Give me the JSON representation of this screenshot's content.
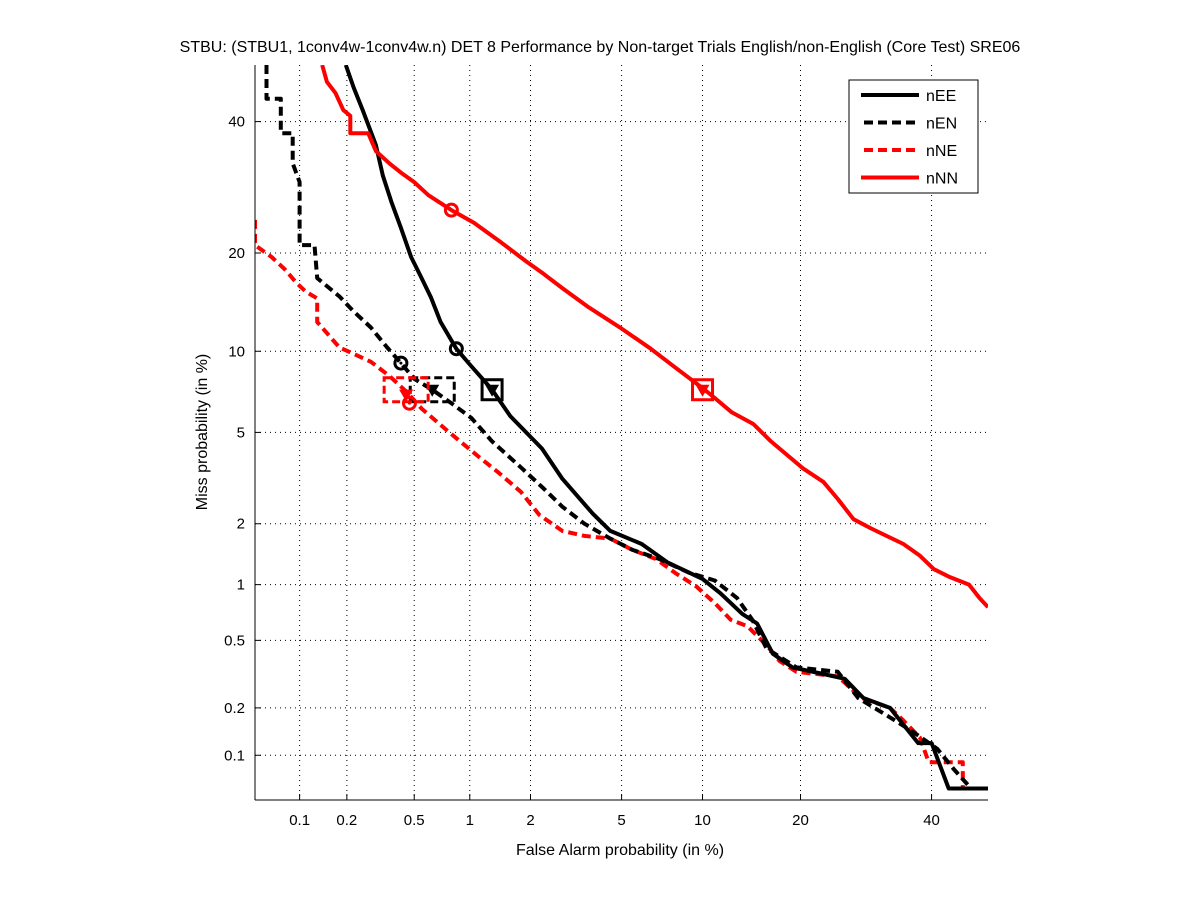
{
  "chart_data": {
    "type": "line",
    "scale": "normal-deviate (DET)",
    "title": "STBU: (STBU1, 1conv4w-1conv4w.n) DET 8 Performance by Non-target Trials English/non-English (Core Test) SRE06",
    "xlabel": "False Alarm probability (in %)",
    "ylabel": "Miss probability (in %)",
    "xlim": [
      0.05,
      50
    ],
    "ylim": [
      0.05,
      50
    ],
    "xticks": [
      0.1,
      0.2,
      0.5,
      1,
      2,
      5,
      10,
      20,
      40
    ],
    "xtick_labels": [
      "0.1",
      "0.2",
      "0.5",
      "1",
      "2",
      "5",
      "10",
      "20",
      "40"
    ],
    "yticks": [
      0.1,
      0.2,
      0.5,
      1,
      2,
      5,
      10,
      20,
      40
    ],
    "ytick_labels": [
      "0.1",
      "0.2",
      "0.5",
      "1",
      "2",
      "5",
      "10",
      "20",
      "40"
    ],
    "grid": true,
    "legend_position": "top-right",
    "series": [
      {
        "name": "nEE",
        "color": "#000000",
        "style": "solid",
        "points": [
          [
            0.197,
            50
          ],
          [
            0.22,
            46
          ],
          [
            0.25,
            42
          ],
          [
            0.3,
            36
          ],
          [
            0.33,
            31
          ],
          [
            0.37,
            27
          ],
          [
            0.42,
            23.3
          ],
          [
            0.48,
            19.5
          ],
          [
            0.55,
            17
          ],
          [
            0.62,
            14.9
          ],
          [
            0.7,
            12.5
          ],
          [
            0.85,
            10.2
          ],
          [
            1.0,
            9.0
          ],
          [
            1.3,
            7.3
          ],
          [
            1.6,
            5.8
          ],
          [
            2.26,
            4.3
          ],
          [
            2.8,
            3.2
          ],
          [
            3.8,
            2.23
          ],
          [
            4.5,
            1.85
          ],
          [
            6.0,
            1.6
          ],
          [
            7.5,
            1.3
          ],
          [
            10,
            1.07
          ],
          [
            11.5,
            0.9
          ],
          [
            13.5,
            0.7
          ],
          [
            15,
            0.62
          ],
          [
            16.7,
            0.42
          ],
          [
            19,
            0.35
          ],
          [
            23,
            0.32
          ],
          [
            26,
            0.3
          ],
          [
            28.8,
            0.23
          ],
          [
            33,
            0.2
          ],
          [
            37.7,
            0.12
          ],
          [
            40,
            0.12
          ],
          [
            43,
            0.06
          ],
          [
            50,
            0.06
          ]
        ]
      },
      {
        "name": "nEN",
        "color": "#000000",
        "style": "dashed",
        "points": [
          [
            0.06,
            50
          ],
          [
            0.06,
            44
          ],
          [
            0.075,
            44
          ],
          [
            0.075,
            38
          ],
          [
            0.09,
            38
          ],
          [
            0.09,
            33
          ],
          [
            0.1,
            30
          ],
          [
            0.1,
            21
          ],
          [
            0.125,
            21
          ],
          [
            0.13,
            17
          ],
          [
            0.18,
            15
          ],
          [
            0.22,
            13.5
          ],
          [
            0.28,
            12
          ],
          [
            0.35,
            10.3
          ],
          [
            0.42,
            9.1
          ],
          [
            0.5,
            8.0
          ],
          [
            0.63,
            7.3
          ],
          [
            0.8,
            6.5
          ],
          [
            1.02,
            5.7
          ],
          [
            1.3,
            4.6
          ],
          [
            1.82,
            3.55
          ],
          [
            2.3,
            2.9
          ],
          [
            2.8,
            2.4
          ],
          [
            3.5,
            2.0
          ],
          [
            4.5,
            1.7
          ],
          [
            5.5,
            1.5
          ],
          [
            7,
            1.35
          ],
          [
            9,
            1.15
          ],
          [
            11,
            1.05
          ],
          [
            13,
            0.85
          ],
          [
            14.5,
            0.65
          ],
          [
            16,
            0.45
          ],
          [
            19.5,
            0.35
          ],
          [
            25,
            0.33
          ],
          [
            28,
            0.23
          ],
          [
            33.5,
            0.17
          ],
          [
            37,
            0.14
          ],
          [
            41,
            0.11
          ],
          [
            44,
            0.08
          ],
          [
            47,
            0.06
          ],
          [
            50,
            0.06
          ]
        ]
      },
      {
        "name": "nNE",
        "color": "#ff0000",
        "style": "dashed",
        "points": [
          [
            0.05,
            24.4
          ],
          [
            0.05,
            21
          ],
          [
            0.065,
            19.5
          ],
          [
            0.08,
            18
          ],
          [
            0.095,
            16.5
          ],
          [
            0.11,
            15.5
          ],
          [
            0.13,
            14.8
          ],
          [
            0.13,
            12.5
          ],
          [
            0.18,
            10.3
          ],
          [
            0.22,
            9.8
          ],
          [
            0.28,
            9.2
          ],
          [
            0.36,
            8.2
          ],
          [
            0.45,
            7.2
          ],
          [
            0.55,
            6.2
          ],
          [
            0.78,
            5.0
          ],
          [
            1.1,
            4.0
          ],
          [
            1.4,
            3.4
          ],
          [
            1.8,
            2.8
          ],
          [
            2.2,
            2.2
          ],
          [
            2.8,
            1.85
          ],
          [
            3.5,
            1.75
          ],
          [
            4.5,
            1.7
          ],
          [
            5.5,
            1.5
          ],
          [
            6.8,
            1.35
          ],
          [
            8,
            1.15
          ],
          [
            9.5,
            0.98
          ],
          [
            11,
            0.8
          ],
          [
            12.4,
            0.65
          ],
          [
            14,
            0.6
          ],
          [
            16,
            0.47
          ],
          [
            17.5,
            0.38
          ],
          [
            19.5,
            0.33
          ],
          [
            25,
            0.31
          ],
          [
            28.5,
            0.23
          ],
          [
            33,
            0.2
          ],
          [
            35,
            0.17
          ],
          [
            38,
            0.13
          ],
          [
            39.5,
            0.09
          ],
          [
            45.5,
            0.09
          ],
          [
            45.5,
            0.06
          ],
          [
            50,
            0.06
          ]
        ]
      },
      {
        "name": "nNN",
        "color": "#ff0000",
        "style": "solid",
        "points": [
          [
            0.14,
            50
          ],
          [
            0.15,
            47
          ],
          [
            0.17,
            45
          ],
          [
            0.19,
            42
          ],
          [
            0.21,
            41
          ],
          [
            0.21,
            38
          ],
          [
            0.27,
            38
          ],
          [
            0.3,
            35
          ],
          [
            0.36,
            33
          ],
          [
            0.42,
            31.5
          ],
          [
            0.5,
            30
          ],
          [
            0.6,
            28
          ],
          [
            0.8,
            25.8
          ],
          [
            1.05,
            24
          ],
          [
            1.45,
            21.3
          ],
          [
            1.9,
            19
          ],
          [
            2.3,
            17.5
          ],
          [
            2.8,
            15.9
          ],
          [
            3.6,
            14
          ],
          [
            5.0,
            11.9
          ],
          [
            6.5,
            10.2
          ],
          [
            8,
            8.8
          ],
          [
            10,
            7.4
          ],
          [
            11,
            6.8
          ],
          [
            12.5,
            6.0
          ],
          [
            14.6,
            5.4
          ],
          [
            16.5,
            4.6
          ],
          [
            18.5,
            4.0
          ],
          [
            20.3,
            3.55
          ],
          [
            23,
            3.1
          ],
          [
            25,
            2.6
          ],
          [
            27.3,
            2.1
          ],
          [
            30,
            1.9
          ],
          [
            35.2,
            1.6
          ],
          [
            38,
            1.4
          ],
          [
            40.4,
            1.2
          ],
          [
            43,
            1.1
          ],
          [
            46.6,
            1.0
          ],
          [
            48.5,
            0.85
          ],
          [
            50,
            0.76
          ]
        ]
      }
    ],
    "markers": [
      {
        "series": "nEE",
        "type": "circle",
        "fa": 0.85,
        "miss": 10.2
      },
      {
        "series": "nEE",
        "type": "square",
        "fa": 1.3,
        "miss": 7.3
      },
      {
        "series": "nEE",
        "type": "triangle",
        "fa": 1.3,
        "miss": 7.3
      },
      {
        "series": "nEN",
        "type": "circle",
        "fa": 0.42,
        "miss": 9.1
      },
      {
        "series": "nEN",
        "type": "square",
        "fa": 0.63,
        "miss": 7.3
      },
      {
        "series": "nEN",
        "type": "triangle",
        "fa": 0.63,
        "miss": 7.3
      },
      {
        "series": "nNE",
        "type": "circle",
        "fa": 0.47,
        "miss": 6.5
      },
      {
        "series": "nNE",
        "type": "square",
        "fa": 0.45,
        "miss": 7.3
      },
      {
        "series": "nNE",
        "type": "triangle",
        "fa": 0.45,
        "miss": 7.0
      },
      {
        "series": "nNN",
        "type": "circle",
        "fa": 0.8,
        "miss": 25.8
      },
      {
        "series": "nNN",
        "type": "square",
        "fa": 10,
        "miss": 7.3
      },
      {
        "series": "nNN",
        "type": "triangle",
        "fa": 10,
        "miss": 7.3
      }
    ]
  }
}
